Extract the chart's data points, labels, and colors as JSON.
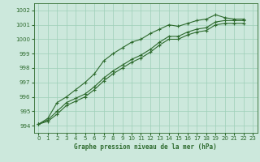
{
  "xlabel": "Graphe pression niveau de la mer (hPa)",
  "ylim": [
    993.5,
    1002.5
  ],
  "xlim": [
    -0.5,
    23.5
  ],
  "yticks": [
    994,
    995,
    996,
    997,
    998,
    999,
    1000,
    1001,
    1002
  ],
  "xticks": [
    0,
    1,
    2,
    3,
    4,
    5,
    6,
    7,
    8,
    9,
    10,
    11,
    12,
    13,
    14,
    15,
    16,
    17,
    18,
    19,
    20,
    21,
    22,
    23
  ],
  "bg_color": "#cce8dc",
  "grid_color": "#9ecfb8",
  "line_color": "#2d6a2d",
  "series": [
    [
      994.1,
      994.5,
      995.6,
      996.0,
      996.5,
      997.0,
      997.6,
      998.5,
      999.0,
      999.4,
      999.8,
      1000.0,
      1000.4,
      1000.7,
      1001.0,
      1000.9,
      1001.1,
      1001.3,
      1001.4,
      1001.7,
      1001.5,
      1001.4,
      1001.4
    ],
    [
      994.1,
      994.4,
      995.0,
      995.6,
      995.9,
      996.2,
      996.7,
      997.3,
      997.8,
      998.2,
      998.6,
      998.9,
      999.3,
      999.8,
      1000.2,
      1000.2,
      1000.5,
      1000.7,
      1000.8,
      1001.2,
      1001.3,
      1001.3,
      1001.3
    ],
    [
      994.1,
      994.3,
      994.8,
      995.4,
      995.7,
      996.0,
      996.5,
      997.1,
      997.6,
      998.0,
      998.4,
      998.7,
      999.1,
      999.6,
      1000.0,
      1000.0,
      1000.3,
      1000.5,
      1000.6,
      1001.0,
      1001.1,
      1001.1,
      1001.1
    ]
  ],
  "marker": "+",
  "markersize": 3.5,
  "linewidth": 0.8,
  "tick_labelsize": 5.0,
  "xlabel_fontsize": 5.5
}
